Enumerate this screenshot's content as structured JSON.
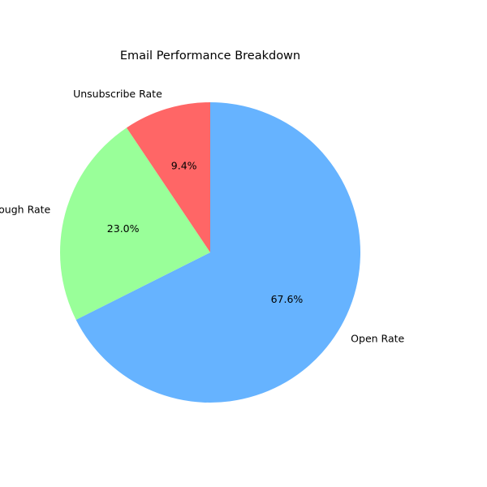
{
  "chart_data": {
    "type": "pie",
    "title": "Email Performance Breakdown",
    "start_angle_deg": 90,
    "direction": "clockwise",
    "slices": [
      {
        "label": "Open Rate",
        "value": 67.6,
        "pct_text": "67.6%",
        "color": "#66b3ff"
      },
      {
        "label": "Click-Through Rate",
        "value": 23.0,
        "pct_text": "23.0%",
        "color": "#99ff99"
      },
      {
        "label": "Unsubscribe Rate",
        "value": 9.4,
        "pct_text": "9.4%",
        "color": "#ff6666"
      }
    ],
    "legend": "none"
  }
}
